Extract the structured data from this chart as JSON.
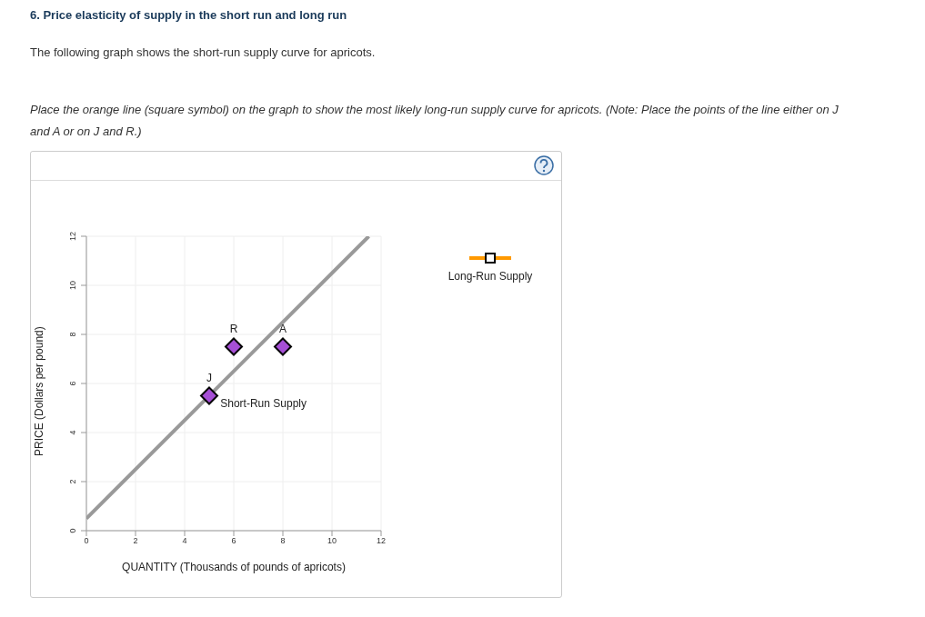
{
  "chart_data": {
    "type": "line",
    "title": "6. Price elasticity of supply in the short run and long run",
    "subtitle": "The following graph shows the short-run supply curve for apricots.",
    "annotations": [
      "Place the orange line (square symbol) on the graph to show the most likely long-run supply curve for apricots. (Note: Place the points of the line either on J and A or on J and R.)",
      {
        "text": "J",
        "x": 5,
        "y": 5.5
      },
      {
        "text": "R",
        "x": 6,
        "y": 7.5
      },
      {
        "text": "A",
        "x": 8,
        "y": 7.5
      }
    ],
    "xlabel": "QUANTITY (Thousands of pounds of apricots)",
    "ylabel": "PRICE (Dollars per pound)",
    "xlim": [
      0,
      12
    ],
    "xticks": [
      0,
      2,
      4,
      6,
      8,
      10,
      12
    ],
    "ylim": [
      0,
      12
    ],
    "yticks": [
      0,
      2,
      4,
      6,
      8,
      10,
      12
    ],
    "grid": true,
    "legend": "right",
    "series": [
      {
        "name": "Short-Run Supply",
        "color": "#999999",
        "marker": "none",
        "x": [
          0,
          11.5
        ],
        "values": [
          0.5,
          12
        ]
      },
      {
        "type": "scatter",
        "color": "#a64fd6",
        "marker": "diamond",
        "x": [
          5,
          6,
          8
        ],
        "values": [
          5.5,
          7.5,
          7.5
        ]
      },
      {
        "name": "Long-Run Supply",
        "color": "#ff9900",
        "marker": "square"
      }
    ]
  }
}
